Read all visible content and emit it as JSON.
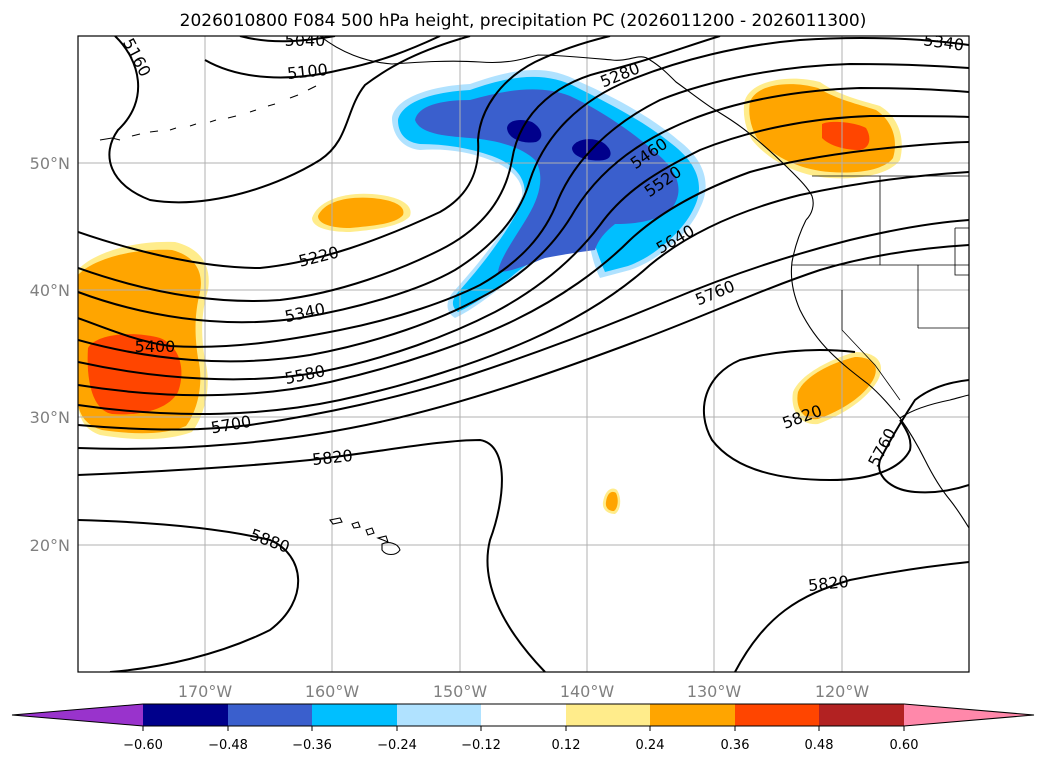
{
  "title": "2026010800 F084 500 hPa height, precipitation PC (2026011200 - 2026011300)",
  "map": {
    "lon_labels": [
      "170°W",
      "160°W",
      "150°W",
      "140°W",
      "130°W",
      "120°W"
    ],
    "lat_labels": [
      "50°N",
      "40°N",
      "30°N",
      "20°N"
    ],
    "contour_labels": [
      "5040",
      "5100",
      "5160",
      "5220",
      "5280",
      "5340",
      "5340",
      "5400",
      "5460",
      "5520",
      "5580",
      "5640",
      "5700",
      "5760",
      "5760",
      "5820",
      "5820",
      "5820",
      "5880"
    ]
  },
  "colorbar": {
    "ticks": [
      "−0.60",
      "−0.48",
      "−0.36",
      "−0.24",
      "−0.12",
      "0.12",
      "0.24",
      "0.36",
      "0.48",
      "0.60"
    ],
    "colors": [
      "#9933cc",
      "#00008b",
      "#3a5fcd",
      "#00bfff",
      "#b0e2ff",
      "#ffffff",
      "#ffec8b",
      "#ffa500",
      "#ff4500",
      "#b22222",
      "#ff88aa"
    ]
  },
  "colors": {
    "neg_dark": "#00008b",
    "neg_mid": "#3a5fcd",
    "neg_light": "#00bfff",
    "neg_pale": "#b0e2ff",
    "pos_pale": "#ffec8b",
    "pos_mid": "#ffa500",
    "pos_strong": "#ff4500",
    "pos_dark": "#b22222"
  }
}
